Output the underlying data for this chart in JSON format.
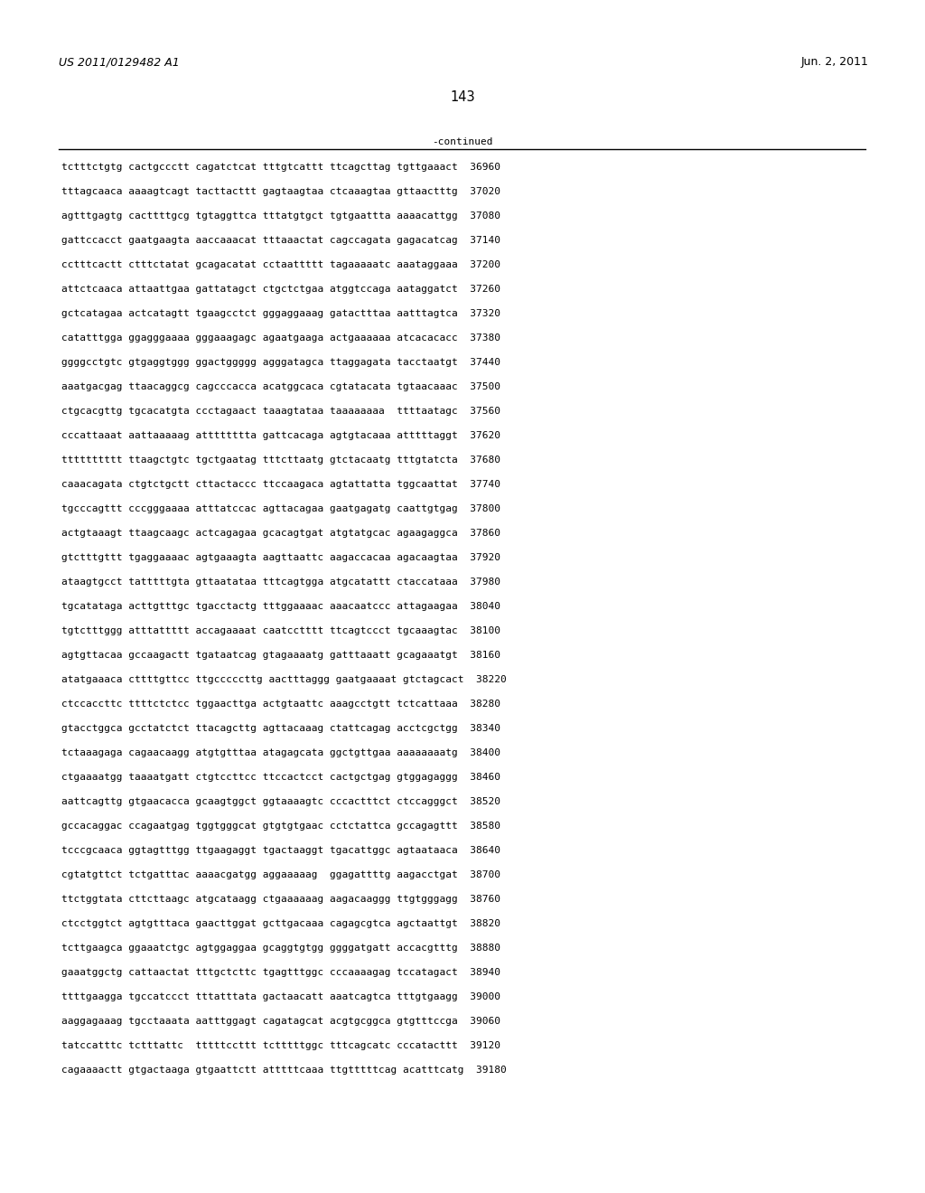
{
  "header_left": "US 2011/0129482 A1",
  "header_right": "Jun. 2, 2011",
  "page_number": "143",
  "continued_label": "-continued",
  "background_color": "#ffffff",
  "text_color": "#000000",
  "font_size_header": 9.0,
  "font_size_body": 8.0,
  "font_size_page": 10.5,
  "sequence_lines": [
    "tctttctgtg cactgccctt cagatctcat tttgtcattt ttcagcttag tgttgaaact  36960",
    "tttagcaaca aaaagtcagt tacttacttt gagtaagtaa ctcaaagtaa gttaactttg  37020",
    "agtttgagtg cacttttgcg tgtaggttca tttatgtgct tgtgaattta aaaacattgg  37080",
    "gattccacct gaatgaagta aaccaaacat tttaaactat cagccagata gagacatcag  37140",
    "cctttcactt ctttctatat gcagacatat cctaattttt tagaaaaatc aaataggaaa  37200",
    "attctcaaca attaattgaa gattatagct ctgctctgaa atggtccaga aataggatct  37260",
    "gctcatagaa actcatagtt tgaagcctct gggaggaaag gatactttaa aatttagtca  37320",
    "catatttgga ggagggaaaa gggaaagagc agaatgaaga actgaaaaaa atcacacacc  37380",
    "ggggcctgtc gtgaggtggg ggactggggg agggatagca ttaggagata tacctaatgt  37440",
    "aaatgacgag ttaacaggcg cagcccacca acatggcaca cgtatacata tgtaacaaac  37500",
    "ctgcacgttg tgcacatgta ccctagaact taaagtataa taaaaaaaa  ttttaatagc  37560",
    "cccattaaat aattaaaaag atttttttta gattcacaga agtgtacaaa atttttaggt  37620",
    "tttttttttt ttaagctgtc tgctgaatag tttcttaatg gtctacaatg tttgtatcta  37680",
    "caaacagata ctgtctgctt cttactaccc ttccaagaca agtattatta tggcaattat  37740",
    "tgcccagttt cccgggaaaa atttatccac agttacagaa gaatgagatg caattgtgag  37800",
    "actgtaaagt ttaagcaagc actcagagaa gcacagtgat atgtatgcac agaagaggca  37860",
    "gtctttgttt tgaggaaaac agtgaaagta aagttaattc aagaccacaa agacaagtaa  37920",
    "ataagtgcct tatttttgta gttaatataa tttcagtgga atgcatattt ctaccataaa  37980",
    "tgcatataga acttgtttgc tgacctactg tttggaaaac aaacaatccc attagaagaa  38040",
    "tgtctttggg atttattttt accagaaaat caatcctttt ttcagtccct tgcaaagtac  38100",
    "agtgttacaa gccaagactt tgataatcag gtagaaaatg gatttaaatt gcagaaatgt  38160",
    "atatgaaaca cttttgttcc ttgcccccttg aactttaggg gaatgaaaat gtctagcact  38220",
    "ctccaccttc ttttctctcc tggaacttga actgtaattc aaagcctgtt tctcattaaa  38280",
    "gtacctggca gcctatctct ttacagcttg agttacaaag ctattcagag acctcgctgg  38340",
    "tctaaagaga cagaacaagg atgtgtttaa atagagcata ggctgttgaa aaaaaaaatg  38400",
    "ctgaaaatgg taaaatgatt ctgtccttcc ttccactcct cactgctgag gtggagaggg  38460",
    "aattcagttg gtgaacacca gcaagtggct ggtaaaagtc cccactttct ctccagggct  38520",
    "gccacaggac ccagaatgag tggtgggcat gtgtgtgaac cctctattca gccagagttt  38580",
    "tcccgcaaca ggtagtttgg ttgaagaggt tgactaaggt tgacattggc agtaataaca  38640",
    "cgtatgttct tctgatttac aaaacgatgg aggaaaaag  ggagattttg aagacctgat  38700",
    "ttctggtata cttcttaagc atgcataagg ctgaaaaaag aagacaaggg ttgtgggagg  38760",
    "ctcctggtct agtgtttaca gaacttggat gcttgacaaa cagagcgtca agctaattgt  38820",
    "tcttgaagca ggaaatctgc agtggaggaa gcaggtgtgg ggggatgatt accacgtttg  38880",
    "gaaatggctg cattaactat tttgctcttc tgagtttggc cccaaaagag tccatagact  38940",
    "ttttgaagga tgccatccct tttatttata gactaacatt aaatcagtca tttgtgaagg  39000",
    "aaggagaaag tgcctaaata aatttggagt cagatagcat acgtgcggca gtgtttccga  39060",
    "tatccatttc tctttattc  tttttccttt tctttttggc tttcagcatc cccatacttt  39120",
    "cagaaaactt gtgactaaga gtgaattctt atttttcaaa ttgtttttcag acatttcatg  39180"
  ]
}
